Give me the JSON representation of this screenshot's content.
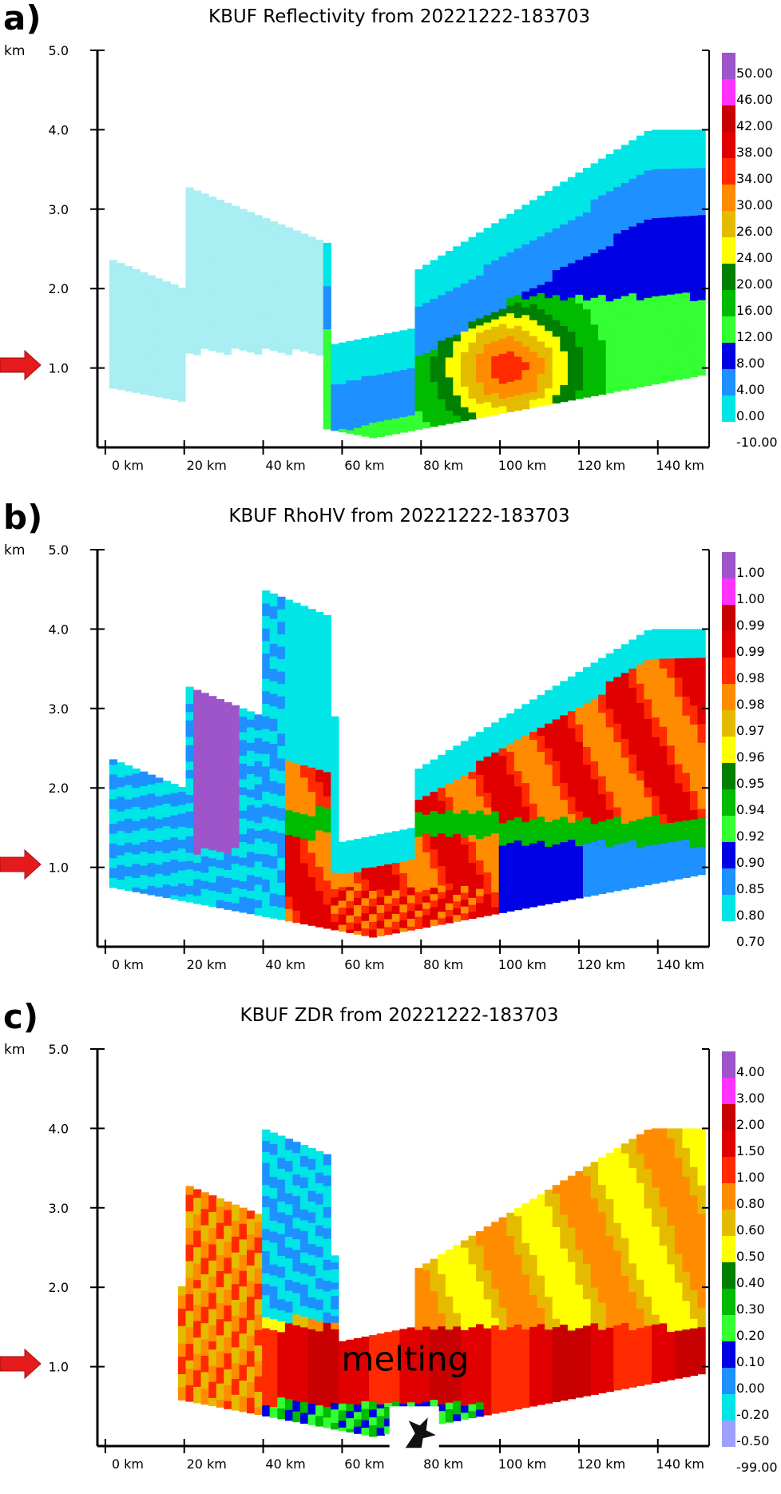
{
  "chart_data": [
    {
      "id": "a",
      "type": "heatmap",
      "panel_label": "a)",
      "title": "KBUF Reflectivity from 20221222-183703",
      "yunit": "km",
      "yticks": [
        "5.0",
        "4.0",
        "3.0",
        "2.0",
        "1.0"
      ],
      "ytick_values": [
        5,
        4,
        3,
        2,
        1
      ],
      "xticks": [
        "0 km",
        "20 km",
        "40 km",
        "60 km",
        "80 km",
        "100 km",
        "120 km",
        "140 km"
      ],
      "xtick_values": [
        0,
        20,
        40,
        60,
        80,
        100,
        120,
        140
      ],
      "xlim": [
        -2,
        153
      ],
      "ylim": [
        0,
        5
      ],
      "colorbar_labels": [
        "50.00",
        "46.00",
        "42.00",
        "38.00",
        "34.00",
        "30.00",
        "26.00",
        "24.00",
        "20.00",
        "16.00",
        "12.00",
        "8.00",
        "4.00",
        "0.00",
        "-10.00"
      ],
      "colorbar_colors": [
        "#9d55c9",
        "#ff33ff",
        "#c80000",
        "#e00000",
        "#ff2a00",
        "#ff8c00",
        "#e5bb00",
        "#ffff00",
        "#008000",
        "#00bb00",
        "#33ff33",
        "#0000e5",
        "#1e90ff",
        "#00e5e5"
      ],
      "indicator_height_km": 1.0
    },
    {
      "id": "b",
      "type": "heatmap",
      "panel_label": "b)",
      "title": "KBUF RhoHV from 20221222-183703",
      "yunit": "km",
      "yticks": [
        "5.0",
        "4.0",
        "3.0",
        "2.0",
        "1.0"
      ],
      "ytick_values": [
        5,
        4,
        3,
        2,
        1
      ],
      "xticks": [
        "0 km",
        "20 km",
        "40 km",
        "60 km",
        "80 km",
        "100 km",
        "120 km",
        "140 km"
      ],
      "xtick_values": [
        0,
        20,
        40,
        60,
        80,
        100,
        120,
        140
      ],
      "xlim": [
        -2,
        153
      ],
      "ylim": [
        0,
        5
      ],
      "colorbar_labels": [
        "1.00",
        "1.00",
        "0.99",
        "0.99",
        "0.98",
        "0.98",
        "0.97",
        "0.96",
        "0.95",
        "0.94",
        "0.92",
        "0.90",
        "0.85",
        "0.80",
        "0.70"
      ],
      "colorbar_colors": [
        "#9d55c9",
        "#ff33ff",
        "#c80000",
        "#e00000",
        "#ff2a00",
        "#ff8c00",
        "#e5bb00",
        "#ffff00",
        "#008000",
        "#00bb00",
        "#33ff33",
        "#0000e5",
        "#1e90ff",
        "#00e5e5"
      ],
      "indicator_height_km": 1.0
    },
    {
      "id": "c",
      "type": "heatmap",
      "panel_label": "c)",
      "title": "KBUF ZDR from 20221222-183703",
      "yunit": "km",
      "yticks": [
        "5.0",
        "4.0",
        "3.0",
        "2.0",
        "1.0"
      ],
      "ytick_values": [
        5,
        4,
        3,
        2,
        1
      ],
      "xticks": [
        "0 km",
        "20 km",
        "40 km",
        "60 km",
        "80 km",
        "100 km",
        "120 km",
        "140 km"
      ],
      "xtick_values": [
        0,
        20,
        40,
        60,
        80,
        100,
        120,
        140
      ],
      "xlim": [
        -2,
        153
      ],
      "ylim": [
        0,
        5
      ],
      "colorbar_labels": [
        "4.00",
        "3.00",
        "2.00",
        "1.50",
        "1.00",
        "0.80",
        "0.60",
        "0.50",
        "0.40",
        "0.30",
        "0.20",
        "0.10",
        "0.00",
        "-0.20",
        "-0.50",
        "-99.00"
      ],
      "colorbar_colors": [
        "#9d55c9",
        "#ff33ff",
        "#c80000",
        "#e00000",
        "#ff2a00",
        "#ff8c00",
        "#e5bb00",
        "#ffff00",
        "#008000",
        "#00bb00",
        "#33ff33",
        "#0000e5",
        "#1e90ff",
        "#00e5e5",
        "#9f9fff"
      ],
      "annotation": "melting",
      "annotation_x_km": 76,
      "annotation_y_km": 0.95,
      "indicator_height_km": 1.0
    }
  ],
  "colors": {
    "arrow_fill": "#e41a1c",
    "axis": "#000000"
  }
}
